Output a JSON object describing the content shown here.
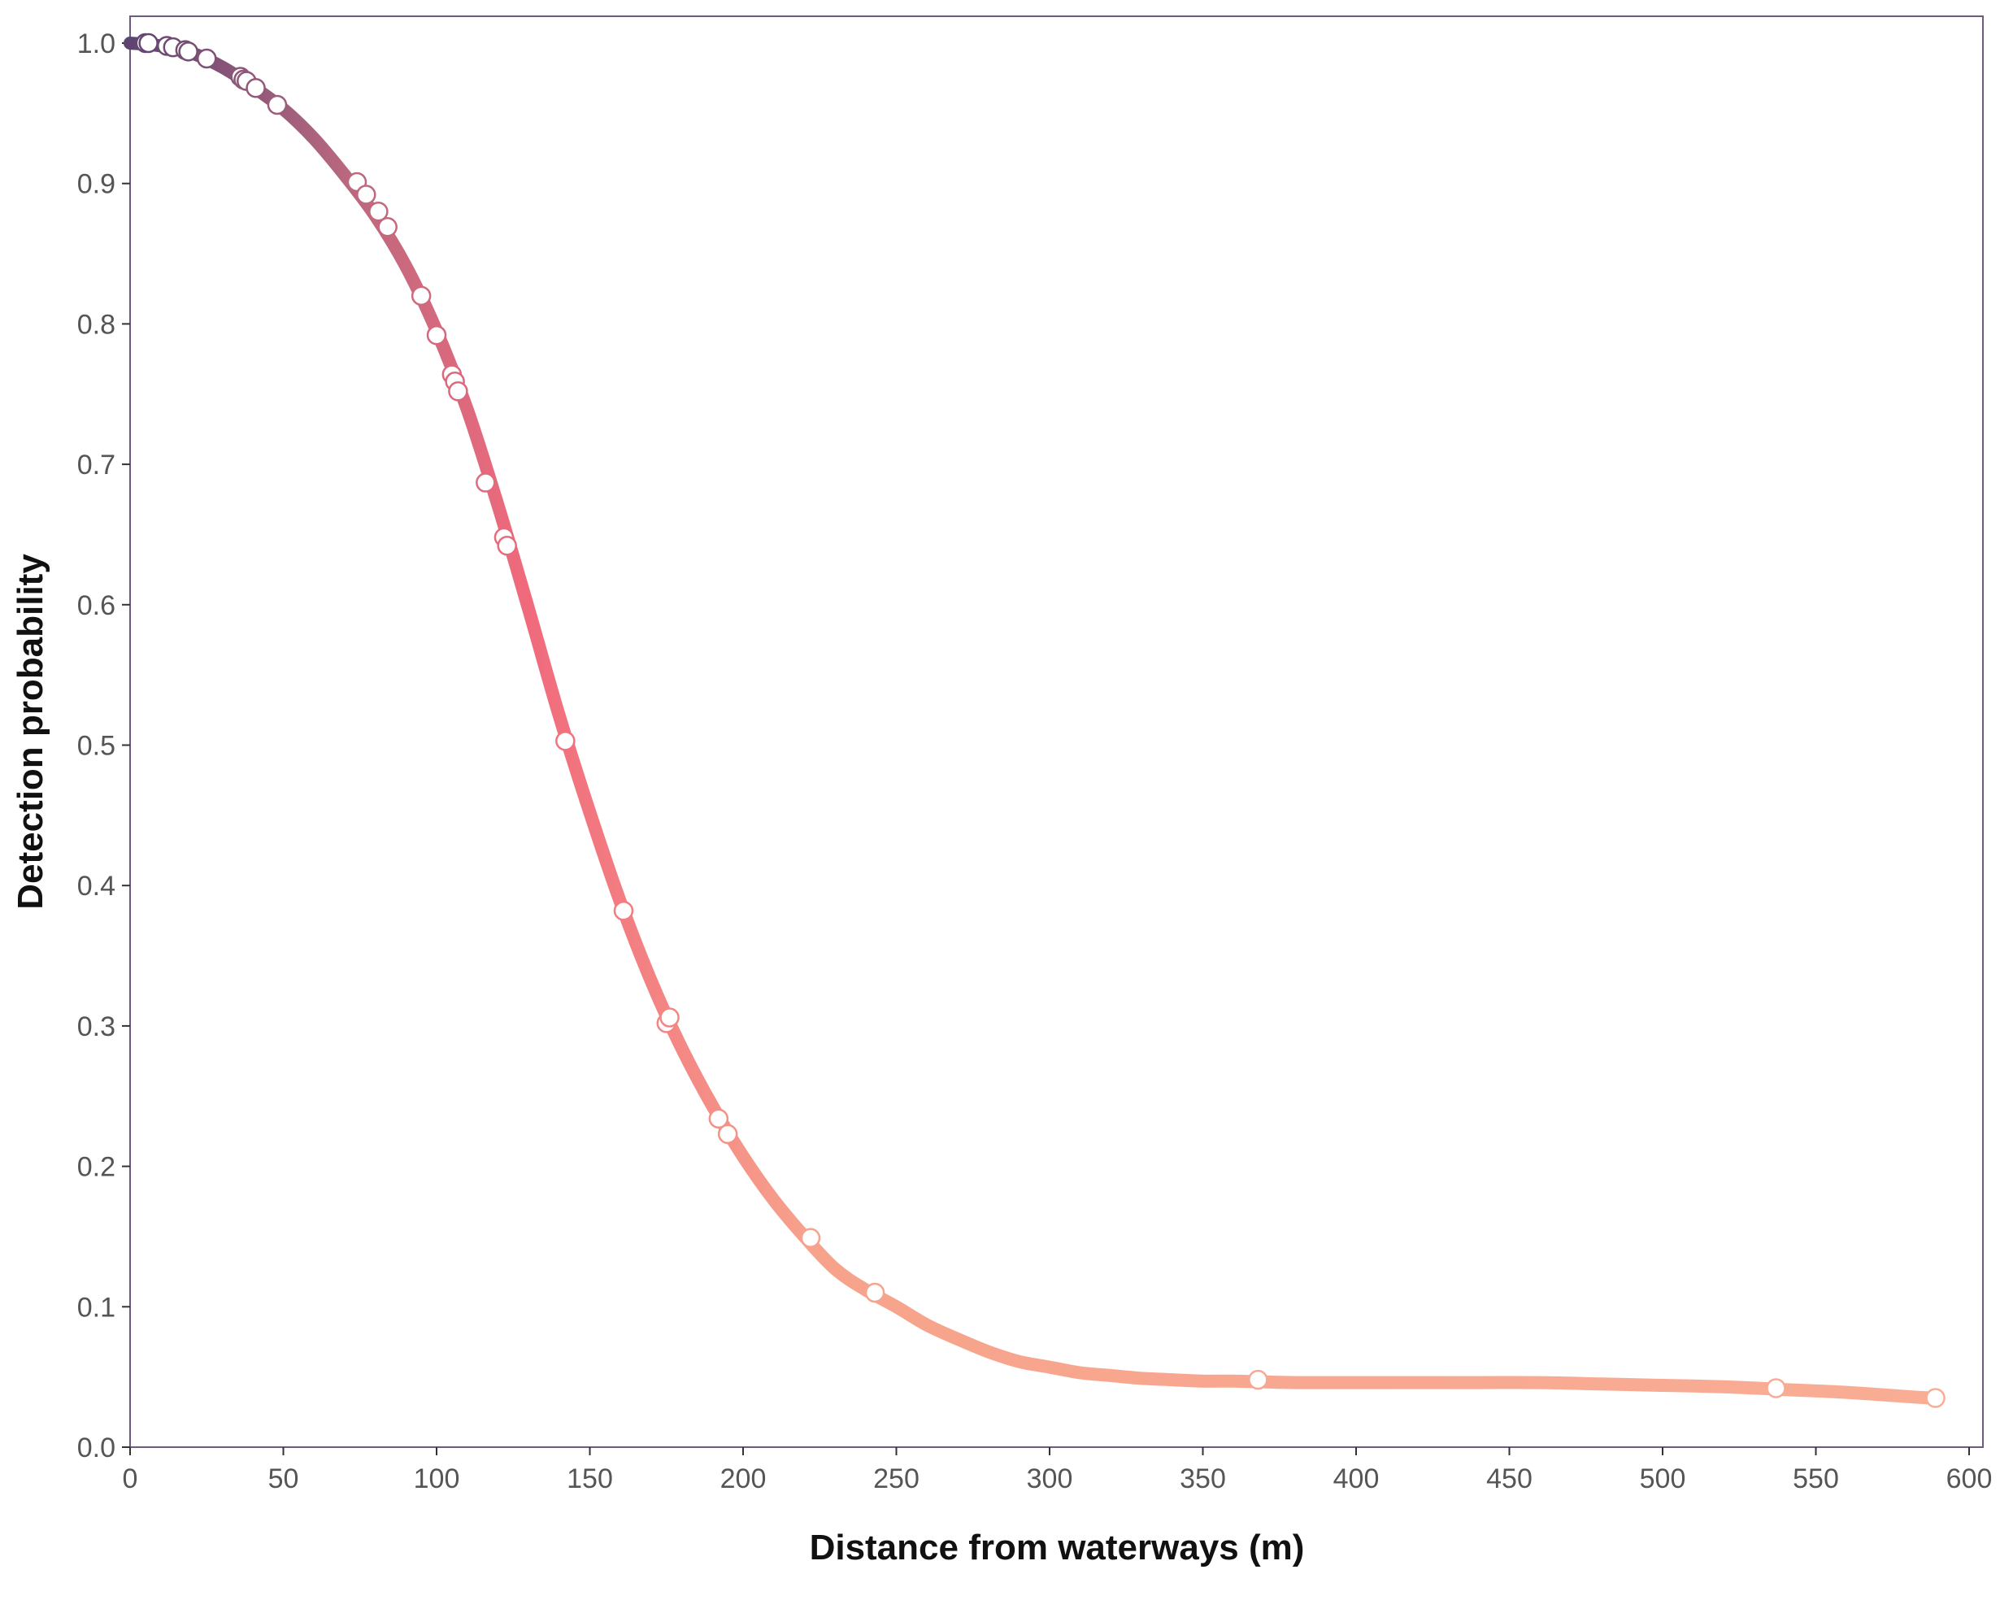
{
  "chart_data": {
    "type": "line",
    "title": "",
    "xlabel": "Distance from waterways (m)",
    "ylabel": "Detection probability",
    "xlim": [
      0,
      600
    ],
    "ylim": [
      0,
      1.0
    ],
    "xticks": [
      0,
      50,
      100,
      150,
      200,
      250,
      300,
      350,
      400,
      450,
      500,
      550,
      600
    ],
    "yticks": [
      "0.0",
      "0.1",
      "0.2",
      "0.3",
      "0.4",
      "0.5",
      "0.6",
      "0.7",
      "0.8",
      "0.9",
      "1.0"
    ],
    "grid": false,
    "legend": "none",
    "colors": {
      "gradient": [
        "#5e4470",
        "#b9687f",
        "#f06a7c",
        "#f7a38c",
        "#f9ad95"
      ],
      "frame": "#6e5a80",
      "marker_fill": "#ffffff",
      "tick_text": "#555555",
      "title_text": "#111111"
    },
    "series": [
      {
        "type": "line",
        "x": [
          0,
          10,
          20,
          30,
          40,
          50,
          60,
          70,
          80,
          90,
          100,
          110,
          120,
          130,
          140,
          150,
          160,
          170,
          180,
          190,
          200,
          210,
          220,
          230,
          240,
          250,
          260,
          270,
          280,
          290,
          300,
          310,
          320,
          330,
          340,
          350,
          360,
          380,
          400,
          420,
          440,
          460,
          480,
          500,
          520,
          540,
          560,
          580,
          588
        ],
        "y": [
          1.0,
          0.998,
          0.993,
          0.983,
          0.969,
          0.953,
          0.932,
          0.906,
          0.877,
          0.841,
          0.795,
          0.739,
          0.671,
          0.597,
          0.521,
          0.452,
          0.388,
          0.332,
          0.284,
          0.243,
          0.207,
          0.176,
          0.15,
          0.127,
          0.112,
          0.1,
          0.087,
          0.077,
          0.068,
          0.061,
          0.057,
          0.053,
          0.051,
          0.049,
          0.048,
          0.047,
          0.047,
          0.046,
          0.046,
          0.046,
          0.046,
          0.046,
          0.045,
          0.044,
          0.043,
          0.041,
          0.039,
          0.036,
          0.035
        ]
      },
      {
        "type": "scatter",
        "x": [
          5,
          6,
          12,
          14,
          18,
          19,
          25,
          36,
          37,
          38,
          41,
          48,
          74,
          77,
          81,
          84,
          95,
          100,
          105,
          106,
          107,
          116,
          122,
          123,
          142,
          161,
          175,
          176,
          192,
          195,
          222,
          243,
          368,
          537,
          589
        ],
        "y": [
          1.0,
          1.0,
          0.998,
          0.997,
          0.995,
          0.994,
          0.989,
          0.976,
          0.974,
          0.973,
          0.968,
          0.956,
          0.901,
          0.892,
          0.88,
          0.869,
          0.82,
          0.792,
          0.764,
          0.759,
          0.752,
          0.687,
          0.648,
          0.642,
          0.503,
          0.382,
          0.302,
          0.306,
          0.234,
          0.223,
          0.149,
          0.11,
          0.048,
          0.042,
          0.035
        ]
      }
    ]
  }
}
